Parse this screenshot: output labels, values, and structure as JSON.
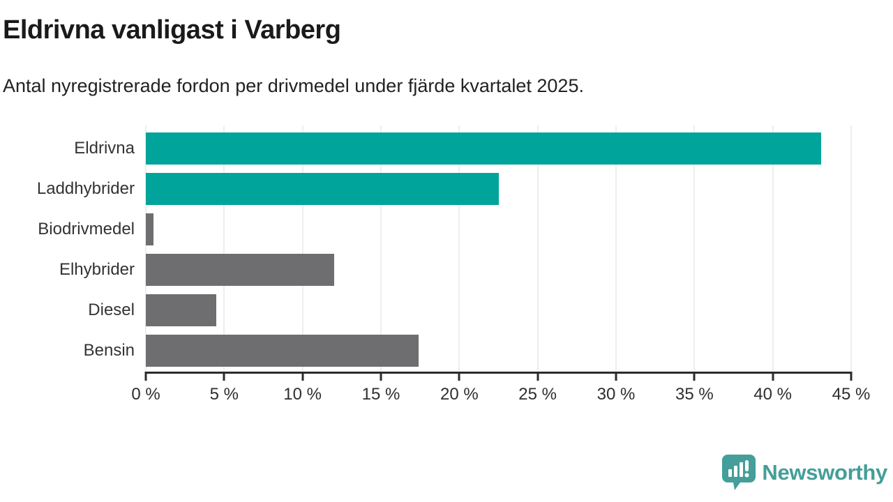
{
  "title": "Eldrivna vanligast i Varberg",
  "subtitle": "Antal nyregistrerade fordon per drivmedel under fjärde kvartalet 2025.",
  "chart_data": {
    "type": "bar",
    "orientation": "horizontal",
    "categories": [
      "Eldrivna",
      "Laddhybrider",
      "Biodrivmedel",
      "Elhybrider",
      "Diesel",
      "Bensin"
    ],
    "values": [
      43.1,
      22.5,
      0.5,
      12.0,
      4.5,
      17.4
    ],
    "unit": "%",
    "bar_colors": [
      "#00a49a",
      "#00a49a",
      "#6e6e71",
      "#6e6e71",
      "#6e6e71",
      "#6e6e71"
    ],
    "xlim": [
      0,
      45
    ],
    "x_ticks": [
      "0 %",
      "5 %",
      "10 %",
      "15 %",
      "20 %",
      "25 %",
      "30 %",
      "35 %",
      "40 %",
      "45 %"
    ],
    "grid": true,
    "legend": "none"
  },
  "colors": {
    "accent_teal": "#00a49a",
    "neutral_gray": "#6e6e71",
    "axis": "#2b2b2b",
    "gridline": "#dcdcdc",
    "title_text": "#1a1a1a",
    "body_text": "#333333",
    "logo_teal": "#449e99"
  },
  "footer": {
    "brand": "Newsworthy"
  }
}
